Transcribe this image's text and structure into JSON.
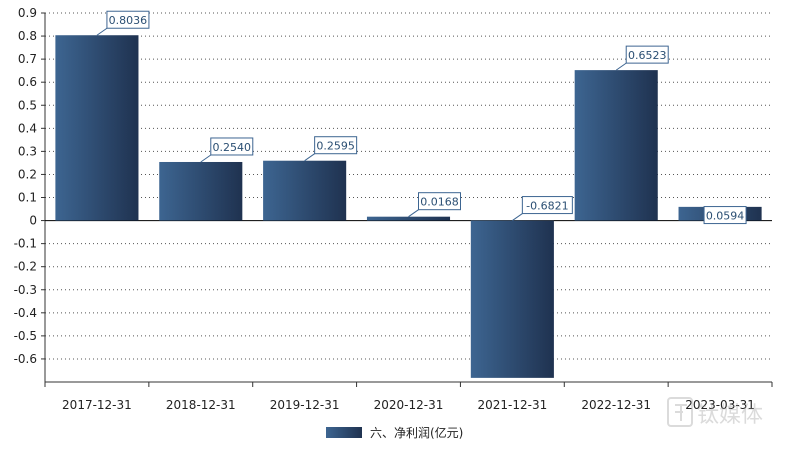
{
  "chart_data": {
    "type": "bar",
    "categories": [
      "2017-12-31",
      "2018-12-31",
      "2019-12-31",
      "2020-12-31",
      "2021-12-31",
      "2022-12-31",
      "2023-03-31"
    ],
    "series": [
      {
        "name": "六、净利润(亿元)",
        "values": [
          0.8036,
          0.254,
          0.2595,
          0.0168,
          -0.6821,
          0.6523,
          0.0594
        ],
        "labels": [
          "0.8036",
          "0.2540",
          "0.2595",
          "0.0168",
          "-0.6821",
          "0.6523",
          "0.0594"
        ]
      }
    ],
    "ylim": [
      -0.7,
      0.9
    ],
    "yticks": [
      0.9,
      0.8,
      0.7,
      0.6,
      0.5,
      0.4,
      0.3,
      0.2,
      0.1,
      0,
      -0.1,
      -0.2,
      -0.3,
      -0.4,
      -0.5,
      -0.6
    ],
    "ytick_labels": [
      "0.9",
      "0.8",
      "0.7",
      "0.6",
      "0.5",
      "0.4",
      "0.3",
      "0.2",
      "0.1",
      "0",
      "-0.1",
      "-0.2",
      "-0.3",
      "-0.4",
      "-0.5",
      "-0.6"
    ],
    "grid": true,
    "legend_position": "bottom-center",
    "colors": {
      "bar_dark": "#1f3250",
      "bar_light": "#3d6591",
      "label_border": "#3d6591",
      "grid": "#555555",
      "axis": "#333333"
    }
  },
  "watermark": {
    "text": "钛媒体"
  }
}
